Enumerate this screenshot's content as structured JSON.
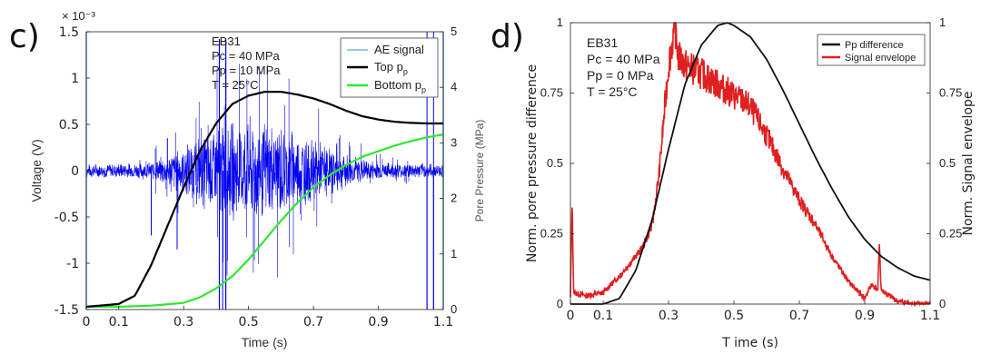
{
  "panel_c": {
    "label": "c)",
    "exponent": "× 10⁻³",
    "annotation": [
      "EB31",
      "Pc = 40 MPa",
      "Pp = 10 MPa",
      "T = 25°C"
    ],
    "colors": {
      "ae": "#0000ee",
      "ae_legend": "#5aa9d6",
      "top": "#000000",
      "bottom": "#2ee82e"
    }
  },
  "panel_d": {
    "label": "d)",
    "annotation": [
      "EB31",
      "Pc = 40 MPa",
      "Pp =  0 MPa",
      "T = 25°C"
    ],
    "colors": {
      "diff": "#111111",
      "env": "#e02020"
    }
  },
  "chart_data": [
    {
      "type": "line",
      "xlabel": "Time (s)",
      "ylabel": "Voltage (V)",
      "y2label": "Pore Pressure (MPa)",
      "xlim": [
        0,
        1.1
      ],
      "ylim": [
        -1.5,
        1.5
      ],
      "y_exponent": -3,
      "y2lim": [
        0,
        5
      ],
      "xticks": [
        "0",
        "0.1",
        "0.3",
        "0.5",
        "0.7",
        "0.9",
        "1.1"
      ],
      "yticks": [
        "-1.5",
        "-1",
        "-0.5",
        "0",
        "0.5",
        "1",
        "1.5"
      ],
      "y2ticks": [
        "0",
        "1",
        "2",
        "3",
        "4",
        "5"
      ],
      "legend": {
        "position": "top-right",
        "entries": [
          "AE signal",
          "Top p",
          "Bottom p"
        ],
        "subscript": "p"
      },
      "series": [
        {
          "name": "AE signal",
          "axis": "left",
          "kind": "noisy-burst",
          "baseline_amplitude_mV": 0.08,
          "envelope": {
            "x": [
              0,
              0.2,
              0.3,
              0.4,
              0.5,
              0.6,
              0.7,
              0.8,
              0.9,
              1.1
            ],
            "y": [
              0.08,
              0.1,
              0.3,
              0.55,
              0.62,
              0.55,
              0.38,
              0.2,
              0.1,
              0.08
            ]
          },
          "spikes": [
            {
              "x": 0.41,
              "y": 1.0
            },
            {
              "x": 0.42,
              "y": -1.5
            },
            {
              "x": 0.43,
              "y": 1.1
            },
            {
              "x": 1.05,
              "y": -1.5
            },
            {
              "x": 1.07,
              "y": -1.5
            },
            {
              "x": 0.2,
              "y": -0.7
            },
            {
              "x": 0.28,
              "y": -0.85
            },
            {
              "x": 0.25,
              "y": 0.35
            }
          ]
        },
        {
          "name": "Top p",
          "axis": "right",
          "x": [
            0,
            0.1,
            0.15,
            0.2,
            0.25,
            0.3,
            0.35,
            0.4,
            0.45,
            0.5,
            0.55,
            0.6,
            0.65,
            0.7,
            0.75,
            0.8,
            0.85,
            0.9,
            0.95,
            1.0,
            1.05,
            1.1
          ],
          "y": [
            0.05,
            0.1,
            0.25,
            0.8,
            1.5,
            2.2,
            2.85,
            3.35,
            3.7,
            3.85,
            3.92,
            3.92,
            3.87,
            3.8,
            3.7,
            3.58,
            3.48,
            3.42,
            3.38,
            3.36,
            3.35,
            3.35
          ]
        },
        {
          "name": "Bottom p",
          "axis": "right",
          "x": [
            0,
            0.1,
            0.2,
            0.3,
            0.35,
            0.4,
            0.45,
            0.5,
            0.55,
            0.6,
            0.65,
            0.7,
            0.75,
            0.8,
            0.85,
            0.9,
            0.95,
            1.0,
            1.05,
            1.1
          ],
          "y": [
            0.05,
            0.05,
            0.07,
            0.12,
            0.22,
            0.38,
            0.6,
            0.9,
            1.25,
            1.6,
            1.92,
            2.2,
            2.42,
            2.6,
            2.75,
            2.85,
            2.95,
            3.03,
            3.1,
            3.15
          ]
        }
      ]
    },
    {
      "type": "line",
      "xlabel": "T ime (s)",
      "ylabel": "Norm. pore pressure  difference",
      "y2label": "Norm. Signal envelope",
      "xlim": [
        0,
        1.1
      ],
      "ylim": [
        0,
        1
      ],
      "y2lim": [
        0,
        1
      ],
      "xticks": [
        "0",
        "0.1",
        "0.3",
        "0.5",
        "0.7",
        "0.9",
        "1.1"
      ],
      "yticks": [
        "0",
        "0.25",
        "0.5",
        "0.75",
        "1"
      ],
      "y2ticks": [
        "0",
        "0.25",
        "0.5",
        "0.75",
        "1"
      ],
      "legend": {
        "position": "top-right",
        "entries": [
          "Pp difference",
          "Signal envelope"
        ]
      },
      "series": [
        {
          "name": "Pp difference",
          "axis": "left",
          "x": [
            0,
            0.1,
            0.15,
            0.2,
            0.25,
            0.3,
            0.35,
            0.4,
            0.45,
            0.48,
            0.5,
            0.55,
            0.6,
            0.65,
            0.7,
            0.75,
            0.8,
            0.85,
            0.9,
            0.95,
            1.0,
            1.05,
            1.1
          ],
          "y": [
            0,
            0,
            0.02,
            0.12,
            0.3,
            0.55,
            0.78,
            0.92,
            0.99,
            1.0,
            0.99,
            0.95,
            0.87,
            0.76,
            0.64,
            0.52,
            0.41,
            0.31,
            0.23,
            0.17,
            0.13,
            0.1,
            0.085
          ]
        },
        {
          "name": "Signal envelope",
          "axis": "right",
          "kind": "noisy",
          "x": [
            0,
            0.005,
            0.01,
            0.05,
            0.1,
            0.15,
            0.2,
            0.22,
            0.25,
            0.27,
            0.3,
            0.32,
            0.33,
            0.35,
            0.4,
            0.45,
            0.5,
            0.53,
            0.55,
            0.6,
            0.65,
            0.7,
            0.75,
            0.8,
            0.85,
            0.9,
            0.92,
            0.94,
            0.945,
            0.95,
            1.0,
            1.05,
            1.1
          ],
          "y": [
            0.02,
            0.37,
            0.04,
            0.03,
            0.04,
            0.1,
            0.17,
            0.2,
            0.28,
            0.45,
            0.85,
            0.99,
            0.88,
            0.85,
            0.82,
            0.78,
            0.74,
            0.72,
            0.7,
            0.6,
            0.48,
            0.37,
            0.28,
            0.17,
            0.08,
            0.02,
            0.07,
            0.05,
            0.22,
            0.05,
            0.01,
            0.0,
            0.0
          ]
        }
      ]
    }
  ]
}
